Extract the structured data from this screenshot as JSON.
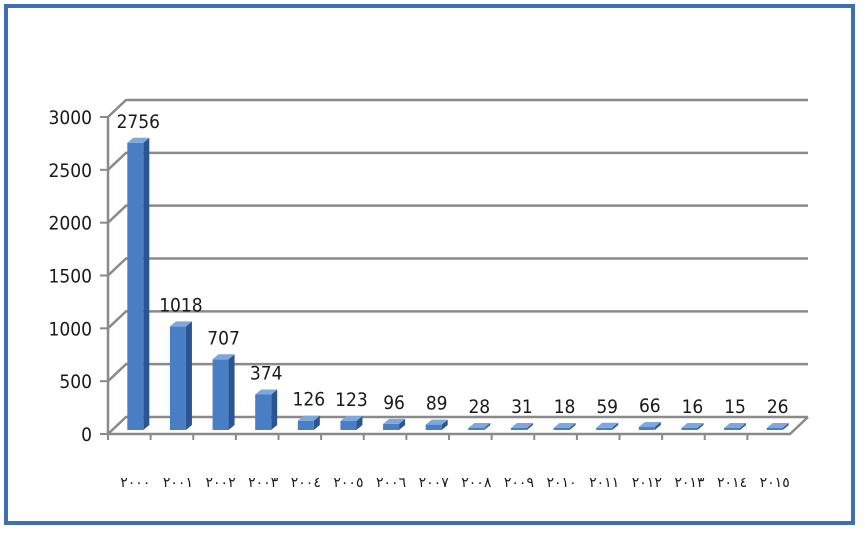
{
  "chart_data": {
    "type": "bar",
    "categories": [
      "٢٠٠٠",
      "٢٠٠١",
      "٢٠٠٢",
      "٢٠٠٣",
      "٢٠٠٤",
      "٢٠٠٥",
      "٢٠٠٦",
      "٢٠٠٧",
      "٢٠٠٨",
      "٢٠٠٩",
      "٢٠١٠",
      "٢٠١١",
      "٢٠١٢",
      "٢٠١٣",
      "٢٠١٤",
      "٢٠١٥"
    ],
    "values": [
      2756,
      1018,
      707,
      374,
      126,
      123,
      96,
      89,
      28,
      31,
      18,
      59,
      66,
      16,
      15,
      26
    ],
    "data_labels": [
      "2756",
      "1018",
      "707",
      "374",
      "126",
      "123",
      "96",
      "89",
      "28",
      "31",
      "18",
      "59",
      "66",
      "16",
      "15",
      "26"
    ],
    "y_ticks": [
      "0",
      "500",
      "1000",
      "1500",
      "2000",
      "2500",
      "3000"
    ],
    "ylim": [
      0,
      3000
    ],
    "grid": true,
    "legend": "none",
    "colors": {
      "bar_front": "#4a7ec4",
      "bar_side": "#2a5590",
      "bar_top": "#7ea8dc",
      "gridline": "#8a8a8a",
      "border": "#3f6fb3"
    }
  }
}
